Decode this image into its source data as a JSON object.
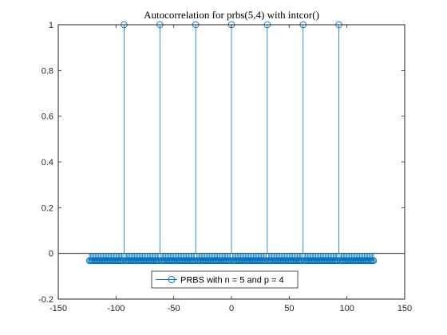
{
  "figure": {
    "background": "#ffffff",
    "axes_color": "#262626"
  },
  "chart_data": {
    "type": "scatter",
    "style": "stem",
    "title": "Autocorrelation for prbs(5,4) with intcor()",
    "xlabel": "",
    "ylabel": "",
    "xlim": [
      -150,
      150
    ],
    "ylim": [
      -0.2,
      1
    ],
    "xticks": [
      -150,
      -100,
      -50,
      0,
      50,
      100,
      150
    ],
    "yticks": [
      -0.2,
      0,
      0.2,
      0.4,
      0.6,
      0.8,
      1
    ],
    "xtick_labels": [
      "-150",
      "-100",
      "-50",
      "0",
      "50",
      "100",
      "150"
    ],
    "ytick_labels": [
      "-0.2",
      "0",
      "0.2",
      "0.4",
      "0.6",
      "0.8",
      "1"
    ],
    "grid": false,
    "baseline": 0,
    "marker": "circle-open",
    "legend": {
      "position": "bottom-center",
      "entries": [
        "PRBS with n = 5 and p = 4"
      ]
    },
    "series": [
      {
        "name": "PRBS with n = 5 and p = 4",
        "color": "#0072bd",
        "x_range": [
          -123,
          123
        ],
        "x_step": 1,
        "default_value": -0.032258,
        "peaks": [
          {
            "x": -93,
            "y": 1
          },
          {
            "x": -62,
            "y": 1
          },
          {
            "x": -31,
            "y": 1
          },
          {
            "x": 0,
            "y": 1
          },
          {
            "x": 31,
            "y": 1
          },
          {
            "x": 62,
            "y": 1
          },
          {
            "x": 93,
            "y": 1
          }
        ]
      }
    ]
  }
}
